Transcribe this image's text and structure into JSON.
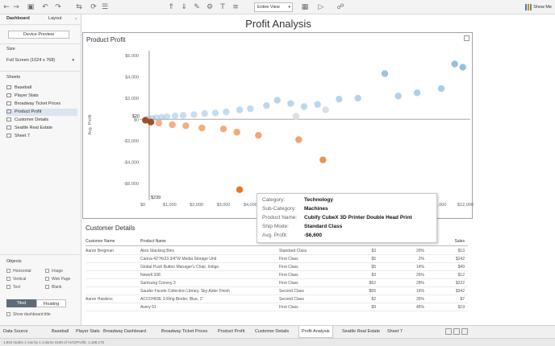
{
  "toolbar": {
    "fit_select": "Entire View",
    "show_me_label": "Show Me",
    "icons": [
      "back-icon",
      "forward-icon",
      "save-icon",
      "undo-icon",
      "redo-icon",
      "swap-icon",
      "sort-asc-icon",
      "sort-desc-icon",
      "highlight-icon",
      "label-icon",
      "format-icon",
      "fix-axes-icon",
      "presentation-icon",
      "share-icon"
    ]
  },
  "left_panel": {
    "tab_dashboard": "Dashboard",
    "tab_layout": "Layout",
    "device_preview": "Device Preview",
    "size_title": "Size",
    "size_value": "Full Screen (1024 x 768)",
    "sheets_title": "Sheets",
    "sheets": [
      "Baseball",
      "Player Stats",
      "Broadway Ticket Prices",
      "Product Profit",
      "Customer Details",
      "Seattle Real Estate",
      "Sheet 7"
    ],
    "selected_sheet": "Product Profit",
    "objects_title": "Objects",
    "objects": [
      "Horizontal",
      "Image",
      "Vertical",
      "Web Page",
      "Text",
      "Blank"
    ],
    "tiled_label": "Tiled",
    "floating_label": "Floating",
    "show_title_label": "Show dashboard title"
  },
  "dashboard": {
    "title": "Profit Analysis"
  },
  "chart_data": {
    "type": "scatter",
    "title": "Product Profit",
    "ylabel": "Avg. Profit",
    "xlim": [
      0,
      12000
    ],
    "ylim": [
      -7000,
      6000
    ],
    "x_ticks": [
      "$0",
      "$1,000",
      "$2,000",
      "$3,000",
      "$4,000",
      "$5,000",
      "$6,000",
      "$7,000",
      "$8,000",
      "$9,000",
      "$10,000",
      "$11,000",
      "$12,000"
    ],
    "y_ticks": [
      "$6,000",
      "$4,000",
      "$2,000",
      "$0",
      "-$2,000",
      "-$4,000",
      "-$6,000"
    ],
    "ref_line_x_label": "$239",
    "ref_line_y_label": "$20",
    "ref_x": 239,
    "ref_y": 20,
    "points": [
      {
        "x": 11900,
        "y": 4900,
        "sign": "pos"
      },
      {
        "x": 11600,
        "y": 5200,
        "sign": "pos"
      },
      {
        "x": 11100,
        "y": 2900,
        "sign": "pos"
      },
      {
        "x": 10200,
        "y": 2500,
        "sign": "pos"
      },
      {
        "x": 9500,
        "y": 2200,
        "sign": "pos"
      },
      {
        "x": 9000,
        "y": 4300,
        "sign": "pos"
      },
      {
        "x": 8000,
        "y": 2000,
        "sign": "pos"
      },
      {
        "x": 7300,
        "y": 1900,
        "sign": "pos"
      },
      {
        "x": 6500,
        "y": 1400,
        "sign": "pos"
      },
      {
        "x": 6000,
        "y": 1200,
        "sign": "pos"
      },
      {
        "x": 5500,
        "y": 1500,
        "sign": "pos"
      },
      {
        "x": 5000,
        "y": 1800,
        "sign": "pos"
      },
      {
        "x": 4600,
        "y": 1300,
        "sign": "pos"
      },
      {
        "x": 4000,
        "y": 1000,
        "sign": "pos"
      },
      {
        "x": 3600,
        "y": 900,
        "sign": "pos"
      },
      {
        "x": 3100,
        "y": 700,
        "sign": "pos"
      },
      {
        "x": 2700,
        "y": 600,
        "sign": "pos"
      },
      {
        "x": 2300,
        "y": 550,
        "sign": "pos"
      },
      {
        "x": 1900,
        "y": 450,
        "sign": "pos"
      },
      {
        "x": 1500,
        "y": 380,
        "sign": "pos"
      },
      {
        "x": 1200,
        "y": 320,
        "sign": "pos"
      },
      {
        "x": 900,
        "y": 250,
        "sign": "pos"
      },
      {
        "x": 700,
        "y": 200,
        "sign": "pos"
      },
      {
        "x": 500,
        "y": 150,
        "sign": "pos"
      },
      {
        "x": 350,
        "y": 100,
        "sign": "pos"
      },
      {
        "x": 200,
        "y": 60,
        "sign": "pos"
      },
      {
        "x": 6800,
        "y": 900,
        "sign": "neutral"
      },
      {
        "x": 5700,
        "y": 300,
        "sign": "neutral"
      },
      {
        "x": 100,
        "y": -80,
        "sign": "neg"
      },
      {
        "x": 300,
        "y": -250,
        "sign": "neg"
      },
      {
        "x": 600,
        "y": -350,
        "sign": "neg"
      },
      {
        "x": 1100,
        "y": -500,
        "sign": "neg"
      },
      {
        "x": 1600,
        "y": -600,
        "sign": "neg"
      },
      {
        "x": 2200,
        "y": -800,
        "sign": "neg"
      },
      {
        "x": 3000,
        "y": -900,
        "sign": "neg"
      },
      {
        "x": 3500,
        "y": -1200,
        "sign": "neg"
      },
      {
        "x": 4300,
        "y": -1500,
        "sign": "neg"
      },
      {
        "x": 5800,
        "y": -1900,
        "sign": "neg"
      },
      {
        "x": 6700,
        "y": -3800,
        "sign": "neg"
      },
      {
        "x": 3600,
        "y": -6600,
        "sign": "neg"
      }
    ]
  },
  "customer_details": {
    "title": "Customer Details",
    "columns": [
      "Customer Name",
      "Product Name",
      "Ship Mode",
      "Profit",
      "Profit Ratio",
      "Sales"
    ],
    "rows": [
      [
        "Aaron Bergman",
        "Akro Stacking Bins",
        "Standard Class",
        "$3",
        "20%",
        "$13"
      ],
      [
        "",
        "Carina 42\"Hx23 3/4\"W Media Storage Unit",
        "First Class",
        "$5",
        "2%",
        "$242"
      ],
      [
        "",
        "Global Push Button Manager's Chair, Indigo",
        "First Class",
        "$5",
        "14%",
        "$49"
      ],
      [
        "",
        "Newell 338",
        "First Class",
        "$3",
        "26%",
        "$12"
      ],
      [
        "",
        "Samsung Convoy 3",
        "First Class",
        "$62",
        "28%",
        "$222"
      ],
      [
        "",
        "Sauder Facets Collection Library, Sky Alder Finish",
        "Second Class",
        "$55",
        "16%",
        "$342"
      ],
      [
        "Aaron Hawkins",
        "ACCOHIDE 3-Ring Binder, Blue, 1\"",
        "Second Class",
        "$2",
        "35%",
        "$7"
      ],
      [
        "",
        "Avery 51",
        "First Class",
        "$9",
        "46%",
        "$19"
      ]
    ]
  },
  "tooltip": {
    "category_key": "Category:",
    "category_val": "Technology",
    "subcat_key": "Sub-Category:",
    "subcat_val": "Machines",
    "product_key": "Product Name:",
    "product_val": "Cubify CubeX 3D Printer Double Head Print",
    "ship_key": "Ship Mode:",
    "ship_val": "Standard Class",
    "profit_key": "Avg. Profit:",
    "profit_val": "-$6,600"
  },
  "sheet_tabs": [
    "Data Source",
    "Baseball",
    "Player Stats",
    "Broadway Dashboard",
    "Broadway Ticket Prices",
    "Product Profit",
    "Customer Details",
    "Profit Analysis",
    "Seattle Real Estate",
    "Sheet 7"
  ],
  "active_sheet_tab": "Profit Analysis",
  "status": {
    "text": "1,942 marks   1 row by 1 column   SUM of AVG(Profit): 1,188,175"
  },
  "colors": {
    "positive": "#8cbce0",
    "negative": "#e8782a",
    "dark_negative": "#a0461c",
    "neutral": "#d7dde3"
  }
}
